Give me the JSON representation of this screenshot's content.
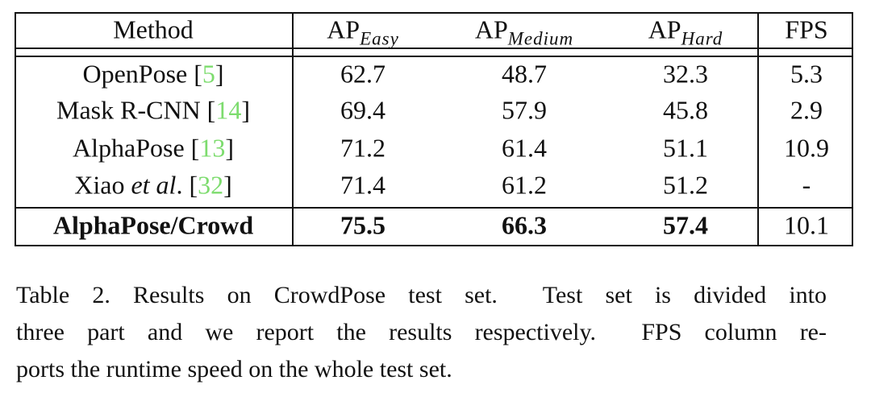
{
  "table": {
    "header": [
      {
        "text": "Method"
      },
      {
        "text": "AP",
        "sub": "Easy"
      },
      {
        "text": "AP",
        "sub": "Medium"
      },
      {
        "text": "AP",
        "sub": "Hard"
      },
      {
        "text": "FPS"
      }
    ],
    "rows": [
      {
        "method": [
          {
            "text": "OpenPose "
          },
          {
            "text": "["
          },
          {
            "text": "5",
            "link": true
          },
          {
            "text": "]"
          }
        ],
        "values": [
          62.7,
          48.7,
          32.3,
          5.3
        ],
        "bold": false
      },
      {
        "method": [
          {
            "text": "Mask R-CNN "
          },
          {
            "text": "["
          },
          {
            "text": "14",
            "link": true
          },
          {
            "text": "]"
          }
        ],
        "values": [
          69.4,
          57.9,
          45.8,
          2.9
        ],
        "bold": false
      },
      {
        "method": [
          {
            "text": "AlphaPose "
          },
          {
            "text": "["
          },
          {
            "text": "13",
            "link": true
          },
          {
            "text": "]"
          }
        ],
        "values": [
          71.2,
          61.4,
          51.1,
          10.9
        ],
        "bold": false
      },
      {
        "method": [
          {
            "text": "Xiao "
          },
          {
            "text": "et al",
            "italic": true
          },
          {
            "text": ". ["
          },
          {
            "text": "32",
            "link": true
          },
          {
            "text": "]"
          }
        ],
        "values": [
          71.4,
          61.2,
          51.2,
          "-"
        ],
        "bold": false
      },
      {
        "method": [
          {
            "text": "AlphaPose/Crowd"
          }
        ],
        "values": [
          75.5,
          66.3,
          57.4,
          10.1
        ],
        "bold": true,
        "bold_last": false
      }
    ]
  },
  "caption": {
    "lines": [
      "Table 2. Results on CrowdPose test set.  Test set is divided into",
      "three part and we report the results respectively.  FPS column re-",
      "ports the runtime speed on the whole test set."
    ]
  }
}
